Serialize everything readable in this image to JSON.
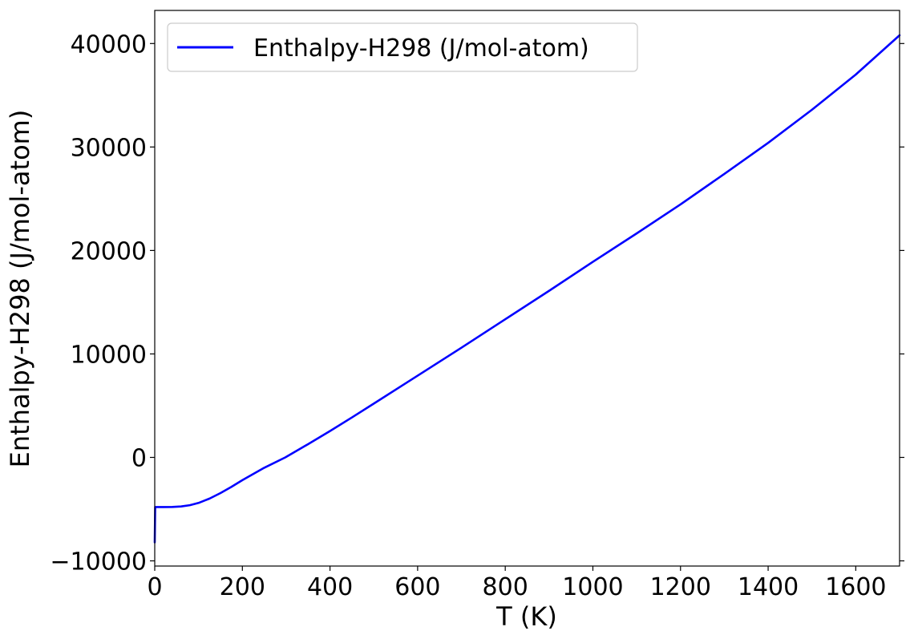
{
  "chart_data": {
    "type": "line",
    "title": "",
    "xlabel": "T (K)",
    "ylabel": "Enthalpy-H298 (J/mol-atom)",
    "xlim": [
      0,
      1700
    ],
    "ylim": [
      -10500,
      43200
    ],
    "xticks": [
      0,
      200,
      400,
      600,
      800,
      1000,
      1200,
      1400,
      1600
    ],
    "yticks": [
      -10000,
      0,
      10000,
      20000,
      30000,
      40000
    ],
    "xtick_labels": [
      "0",
      "200",
      "400",
      "600",
      "800",
      "1000",
      "1200",
      "1400",
      "1600"
    ],
    "ytick_labels": [
      "−10000",
      "0",
      "10000",
      "20000",
      "30000",
      "40000"
    ],
    "grid": false,
    "legend_position": "top-left",
    "series": [
      {
        "name": "Enthalpy-H298 (J/mol-atom)",
        "color": "#0000ff",
        "x": [
          0,
          1,
          2,
          5,
          10,
          20,
          40,
          60,
          80,
          100,
          125,
          150,
          175,
          200,
          250,
          298,
          350,
          400,
          450,
          500,
          600,
          700,
          800,
          900,
          1000,
          1100,
          1200,
          1300,
          1400,
          1500,
          1600,
          1700
        ],
        "y": [
          -8200,
          -4800,
          -4800,
          -4800,
          -4800,
          -4800,
          -4790,
          -4740,
          -4620,
          -4400,
          -3980,
          -3450,
          -2850,
          -2200,
          -1000,
          0,
          1280,
          2550,
          3860,
          5200,
          7900,
          10600,
          13350,
          16100,
          18900,
          21650,
          24450,
          27400,
          30400,
          33600,
          37000,
          40800
        ]
      }
    ]
  }
}
